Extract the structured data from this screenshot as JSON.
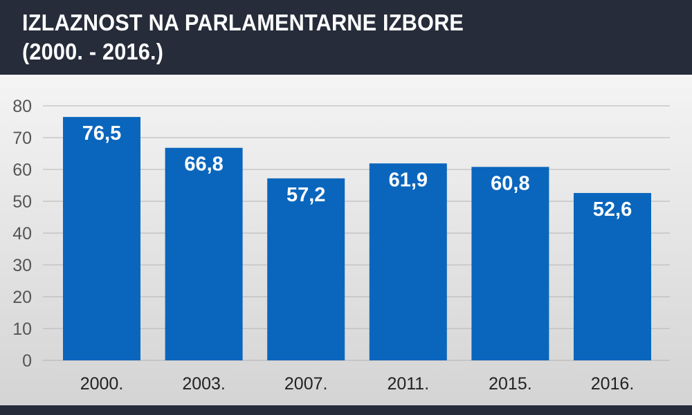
{
  "header": {
    "title": "IZLAZNOST NA PARLAMENTARNE IZBORE",
    "subtitle": "(2000. - 2016.)"
  },
  "colors": {
    "bar": "#0a66bd",
    "header_bg": "#262c3a",
    "grid": "#b4b4b4",
    "axis_text": "#555555",
    "bar_label": "#ffffff"
  },
  "chart_data": {
    "type": "bar",
    "title": "IZLAZNOST NA PARLAMENTARNE IZBORE",
    "subtitle": "(2000. - 2016.)",
    "categories": [
      "2000.",
      "2003.",
      "2007.",
      "2011.",
      "2015.",
      "2016."
    ],
    "values": [
      76.5,
      66.8,
      57.2,
      61.9,
      60.8,
      52.6
    ],
    "value_labels": [
      "76,5",
      "66,8",
      "57,2",
      "61,9",
      "60,8",
      "52,6"
    ],
    "y_ticks": [
      "0",
      "10",
      "20",
      "30",
      "40",
      "50",
      "60",
      "70",
      "80"
    ],
    "ylim": [
      0,
      80
    ],
    "grid": true,
    "legend": "none"
  }
}
